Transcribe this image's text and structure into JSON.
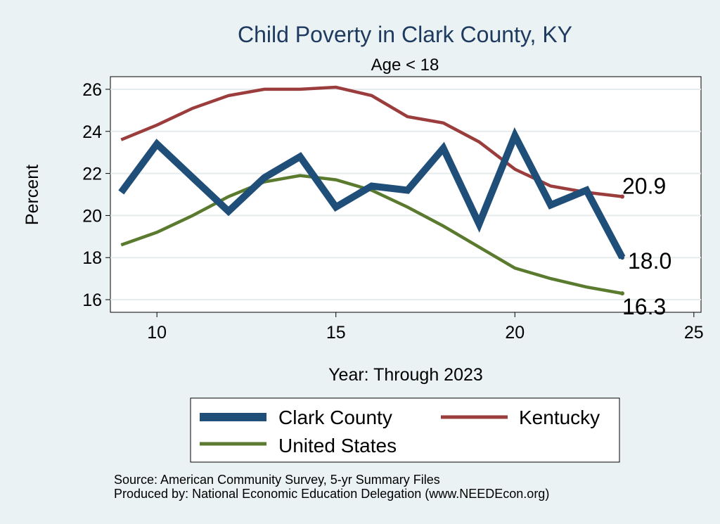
{
  "chart_data": {
    "type": "line",
    "title": "Child Poverty in Clark County, KY",
    "subtitle": "Age < 18",
    "xlabel": "Year: Through 2023",
    "ylabel": "Percent",
    "xlim": [
      8.7,
      25.2
    ],
    "ylim": [
      15.4,
      26.6
    ],
    "xticks": [
      10,
      15,
      20,
      25
    ],
    "yticks": [
      16,
      18,
      20,
      22,
      24,
      26
    ],
    "grid": true,
    "series": [
      {
        "name": "Clark County",
        "color": "#1f4e79",
        "x": [
          9,
          10,
          11,
          12,
          13,
          14,
          15,
          16,
          17,
          18,
          19,
          20,
          21,
          22,
          23
        ],
        "values": [
          21.1,
          23.4,
          21.8,
          20.2,
          21.8,
          22.8,
          20.4,
          21.4,
          21.2,
          23.2,
          19.6,
          23.8,
          20.5,
          21.2,
          18.0
        ],
        "end_label": "18.0"
      },
      {
        "name": "Kentucky",
        "color": "#9b3d3d",
        "x": [
          9,
          10,
          11,
          12,
          13,
          14,
          15,
          16,
          17,
          18,
          19,
          20,
          21,
          22,
          23
        ],
        "values": [
          23.6,
          24.3,
          25.1,
          25.7,
          26.0,
          26.0,
          26.1,
          25.7,
          24.7,
          24.4,
          23.5,
          22.2,
          21.4,
          21.1,
          20.9
        ],
        "end_label": "20.9"
      },
      {
        "name": "United States",
        "color": "#5a7a2e",
        "x": [
          9,
          10,
          11,
          12,
          13,
          14,
          15,
          16,
          17,
          18,
          19,
          20,
          21,
          22,
          23
        ],
        "values": [
          18.6,
          19.2,
          20.0,
          20.9,
          21.6,
          21.9,
          21.7,
          21.2,
          20.4,
          19.5,
          18.5,
          17.5,
          17.0,
          16.6,
          16.3
        ],
        "end_label": "16.3"
      }
    ],
    "legend": {
      "placement": "bottom",
      "entries": [
        "Clark County",
        "Kentucky",
        "United States"
      ]
    },
    "notes": [
      "Source: American Community Survey, 5-yr Summary Files",
      "Produced by: National Economic Education Delegation (www.NEEDEcon.org)"
    ]
  }
}
